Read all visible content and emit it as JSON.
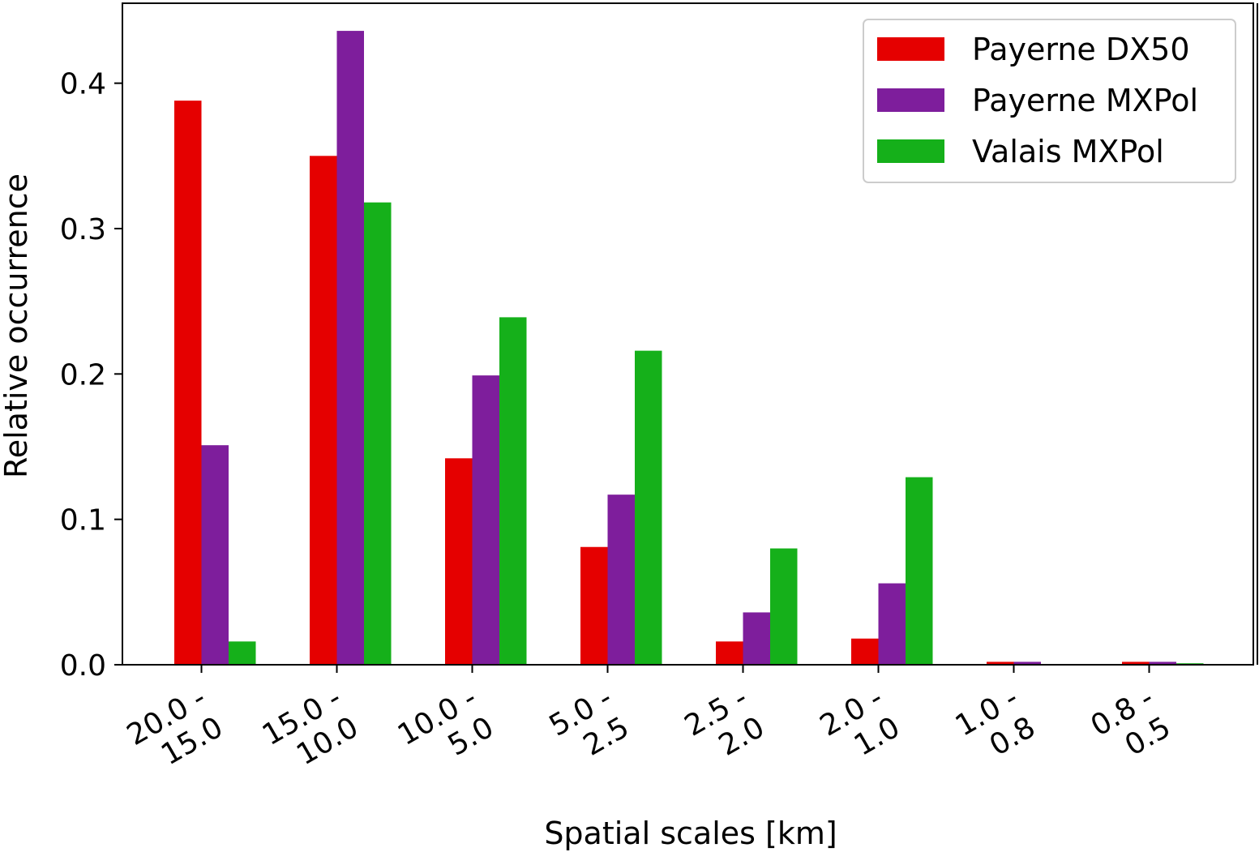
{
  "chart_data": {
    "type": "bar",
    "title": "",
    "xlabel": "Spatial scales [km]",
    "ylabel": "Relative occurrence",
    "ylim": [
      0,
      0.455
    ],
    "yticks": [
      0.0,
      0.1,
      0.2,
      0.3,
      0.4
    ],
    "ytick_labels": [
      "0.0",
      "0.1",
      "0.2",
      "0.3",
      "0.4"
    ],
    "categories": [
      [
        "20.0 -",
        "15.0"
      ],
      [
        "15.0 -",
        "10.0"
      ],
      [
        "10.0 -",
        "5.0"
      ],
      [
        "5.0 -",
        "2.5"
      ],
      [
        "2.5 -",
        "2.0"
      ],
      [
        "2.0 -",
        "1.0"
      ],
      [
        "1.0 -",
        "0.8"
      ],
      [
        "0.8 -",
        "0.5"
      ]
    ],
    "series": [
      {
        "name": "Payerne DX50",
        "color": "#e50000",
        "values": [
          0.388,
          0.35,
          0.142,
          0.081,
          0.016,
          0.018,
          0.002,
          0.002
        ]
      },
      {
        "name": "Payerne MXPol",
        "color": "#7e1e9c",
        "values": [
          0.151,
          0.436,
          0.199,
          0.117,
          0.036,
          0.056,
          0.002,
          0.002
        ]
      },
      {
        "name": "Valais MXPol",
        "color": "#15b01a",
        "values": [
          0.016,
          0.318,
          0.239,
          0.216,
          0.08,
          0.129,
          0.0,
          0.001
        ]
      }
    ],
    "grid": false,
    "legend_position": "top-right"
  }
}
